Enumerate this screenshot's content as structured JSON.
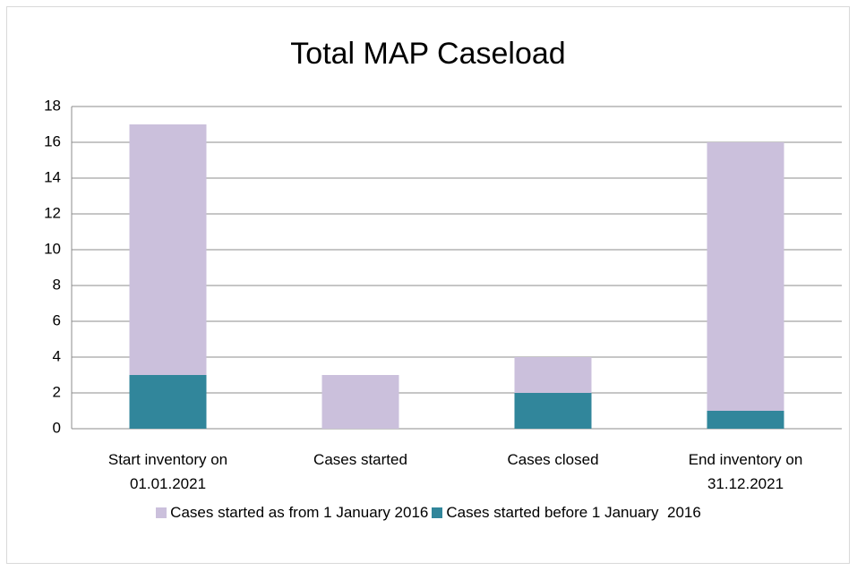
{
  "chart_data": {
    "type": "stacked_bar",
    "title": "Total MAP Caseload",
    "categories": [
      "Start inventory on 01.01.2021",
      "Cases started",
      "Cases closed",
      "End inventory on 31.12.2021"
    ],
    "series": [
      {
        "name": "Cases started as from 1 January 2016",
        "color": "#cbc0dc",
        "values": [
          14,
          3,
          2,
          15
        ]
      },
      {
        "name": "Cases started before 1 January  2016",
        "color": "#31869b",
        "values": [
          3,
          0,
          2,
          1
        ]
      }
    ],
    "ylim": [
      0,
      18
    ],
    "yticks": [
      0,
      2,
      4,
      6,
      8,
      10,
      12,
      14,
      16,
      18
    ],
    "grid": true,
    "legend": "bottom"
  }
}
